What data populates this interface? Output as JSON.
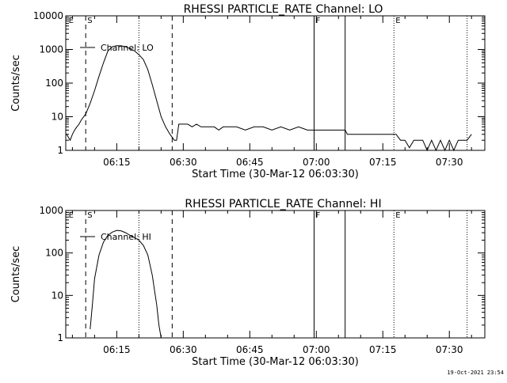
{
  "chart_data": [
    {
      "type": "line",
      "title": "RHESSI PARTICLE_RATE Channel: LO",
      "xlabel": "Start Time (30-Mar-12 06:03:30)",
      "ylabel": "Counts/sec",
      "yscale": "log",
      "xlim": [
        3.5,
        98
      ],
      "ylim": [
        1,
        10000
      ],
      "yticks": [
        {
          "v": 1,
          "label": "1"
        },
        {
          "v": 10,
          "label": "10"
        },
        {
          "v": 100,
          "label": "100"
        },
        {
          "v": 1000,
          "label": "1000"
        },
        {
          "v": 10000,
          "label": "10000"
        }
      ],
      "xticks": [
        {
          "v": 15,
          "label": "06:15"
        },
        {
          "v": 30,
          "label": "06:30"
        },
        {
          "v": 45,
          "label": "06:45"
        },
        {
          "v": 60,
          "label": "07:00"
        },
        {
          "v": 75,
          "label": "07:15"
        },
        {
          "v": 90,
          "label": "07:30"
        }
      ],
      "legend": "Channel: LO",
      "markers": [
        {
          "t": 8,
          "style": "dashed",
          "letter": "S"
        },
        {
          "t": 3.8,
          "style": "none",
          "letter": "E"
        },
        {
          "t": 20,
          "style": "dotted",
          "letter": ""
        },
        {
          "t": 27.5,
          "style": "dashed",
          "letter": ""
        },
        {
          "t": 59.5,
          "style": "solid",
          "letter": "F"
        },
        {
          "t": 66.5,
          "style": "solid",
          "letter": ""
        },
        {
          "t": 77.5,
          "style": "dotted",
          "letter": "E"
        },
        {
          "t": 94,
          "style": "dotted",
          "letter": ""
        }
      ],
      "series": [
        {
          "name": "Channel: LO",
          "x": [
            3.7,
            4.5,
            5,
            5.5,
            6,
            6.5,
            7,
            8,
            9,
            10,
            11,
            12,
            13,
            14,
            15,
            16,
            17,
            18,
            19,
            20,
            21,
            22,
            23,
            24,
            25,
            26,
            27,
            28,
            28.5,
            29,
            30,
            31,
            32,
            33,
            34,
            35,
            36,
            37,
            38,
            39,
            40,
            42,
            44,
            46,
            48,
            50,
            52,
            54,
            56,
            58,
            59.5,
            60,
            62,
            64,
            66,
            66.5,
            67,
            68,
            70,
            72,
            74,
            76,
            78,
            79,
            80,
            81,
            82,
            83,
            84,
            85,
            86,
            87,
            88,
            89,
            90,
            91,
            92,
            93,
            94,
            95
          ],
          "y": [
            3,
            2,
            3,
            4,
            5,
            6,
            8,
            12,
            25,
            60,
            160,
            400,
            900,
            1200,
            1300,
            1280,
            1200,
            1050,
            900,
            700,
            500,
            250,
            90,
            30,
            10,
            5,
            3,
            2,
            2,
            6,
            6,
            6,
            5,
            6,
            5,
            5,
            5,
            5,
            4,
            5,
            5,
            5,
            4,
            5,
            5,
            4,
            5,
            4,
            5,
            4,
            4,
            4,
            4,
            4,
            4,
            4,
            3,
            3,
            3,
            3,
            3,
            3,
            3,
            2,
            2,
            1.2,
            2,
            2,
            2,
            1,
            2,
            1,
            2,
            1,
            2,
            1,
            2,
            2,
            2,
            3
          ]
        }
      ]
    },
    {
      "type": "line",
      "title": "RHESSI PARTICLE_RATE Channel: HI",
      "xlabel": "Start Time (30-Mar-12 06:03:30)",
      "ylabel": "Counts/sec",
      "yscale": "log",
      "xlim": [
        3.5,
        98
      ],
      "ylim": [
        1,
        1000
      ],
      "yticks": [
        {
          "v": 1,
          "label": "1"
        },
        {
          "v": 10,
          "label": "10"
        },
        {
          "v": 100,
          "label": "100"
        },
        {
          "v": 1000,
          "label": "1000"
        }
      ],
      "xticks": [
        {
          "v": 15,
          "label": "06:15"
        },
        {
          "v": 30,
          "label": "06:30"
        },
        {
          "v": 45,
          "label": "06:45"
        },
        {
          "v": 60,
          "label": "07:00"
        },
        {
          "v": 75,
          "label": "07:15"
        },
        {
          "v": 90,
          "label": "07:30"
        }
      ],
      "legend": "Channel: HI",
      "markers": [
        {
          "t": 8,
          "style": "dashed",
          "letter": "S"
        },
        {
          "t": 3.8,
          "style": "none",
          "letter": "E"
        },
        {
          "t": 20,
          "style": "dotted",
          "letter": ""
        },
        {
          "t": 27.5,
          "style": "dashed",
          "letter": ""
        },
        {
          "t": 59.5,
          "style": "solid",
          "letter": "F"
        },
        {
          "t": 66.5,
          "style": "solid",
          "letter": ""
        },
        {
          "t": 77.5,
          "style": "dotted",
          "letter": "E"
        },
        {
          "t": 94,
          "style": "dotted",
          "letter": ""
        }
      ],
      "series": [
        {
          "name": "Channel: HI",
          "x": [
            9,
            9.5,
            10,
            11,
            12,
            13,
            14,
            15,
            16,
            17,
            18,
            19,
            20,
            21,
            22,
            23,
            24,
            24.5,
            25
          ],
          "y": [
            1.6,
            6,
            25,
            90,
            180,
            260,
            310,
            340,
            330,
            300,
            260,
            230,
            200,
            150,
            90,
            30,
            6,
            2,
            1
          ]
        }
      ]
    }
  ],
  "footer": {
    "timestamp": "19-Oct-2021 23:54"
  }
}
